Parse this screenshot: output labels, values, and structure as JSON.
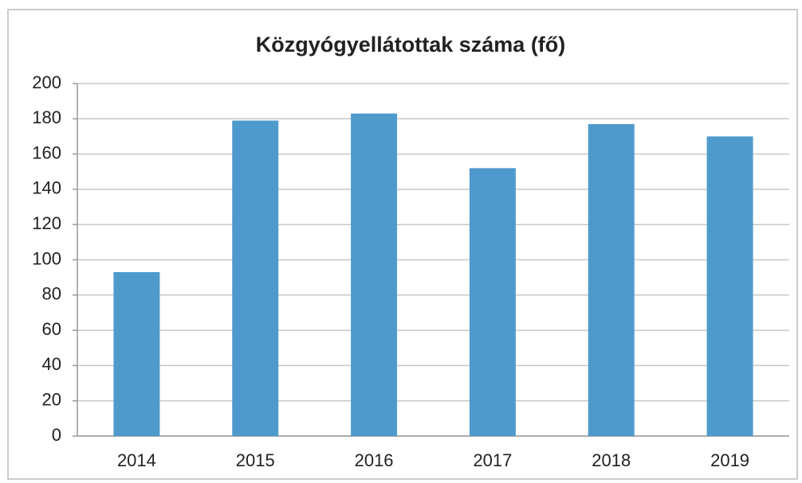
{
  "chart_data": {
    "type": "bar",
    "title": "Közgyógyellátottak száma (fő)",
    "categories": [
      "2014",
      "2015",
      "2016",
      "2017",
      "2018",
      "2019"
    ],
    "values": [
      93,
      179,
      183,
      152,
      177,
      170
    ],
    "color": "#4f9acd",
    "ylim": [
      0,
      200
    ],
    "yticks": [
      0,
      20,
      40,
      60,
      80,
      100,
      120,
      140,
      160,
      180,
      200
    ],
    "grid": true
  }
}
